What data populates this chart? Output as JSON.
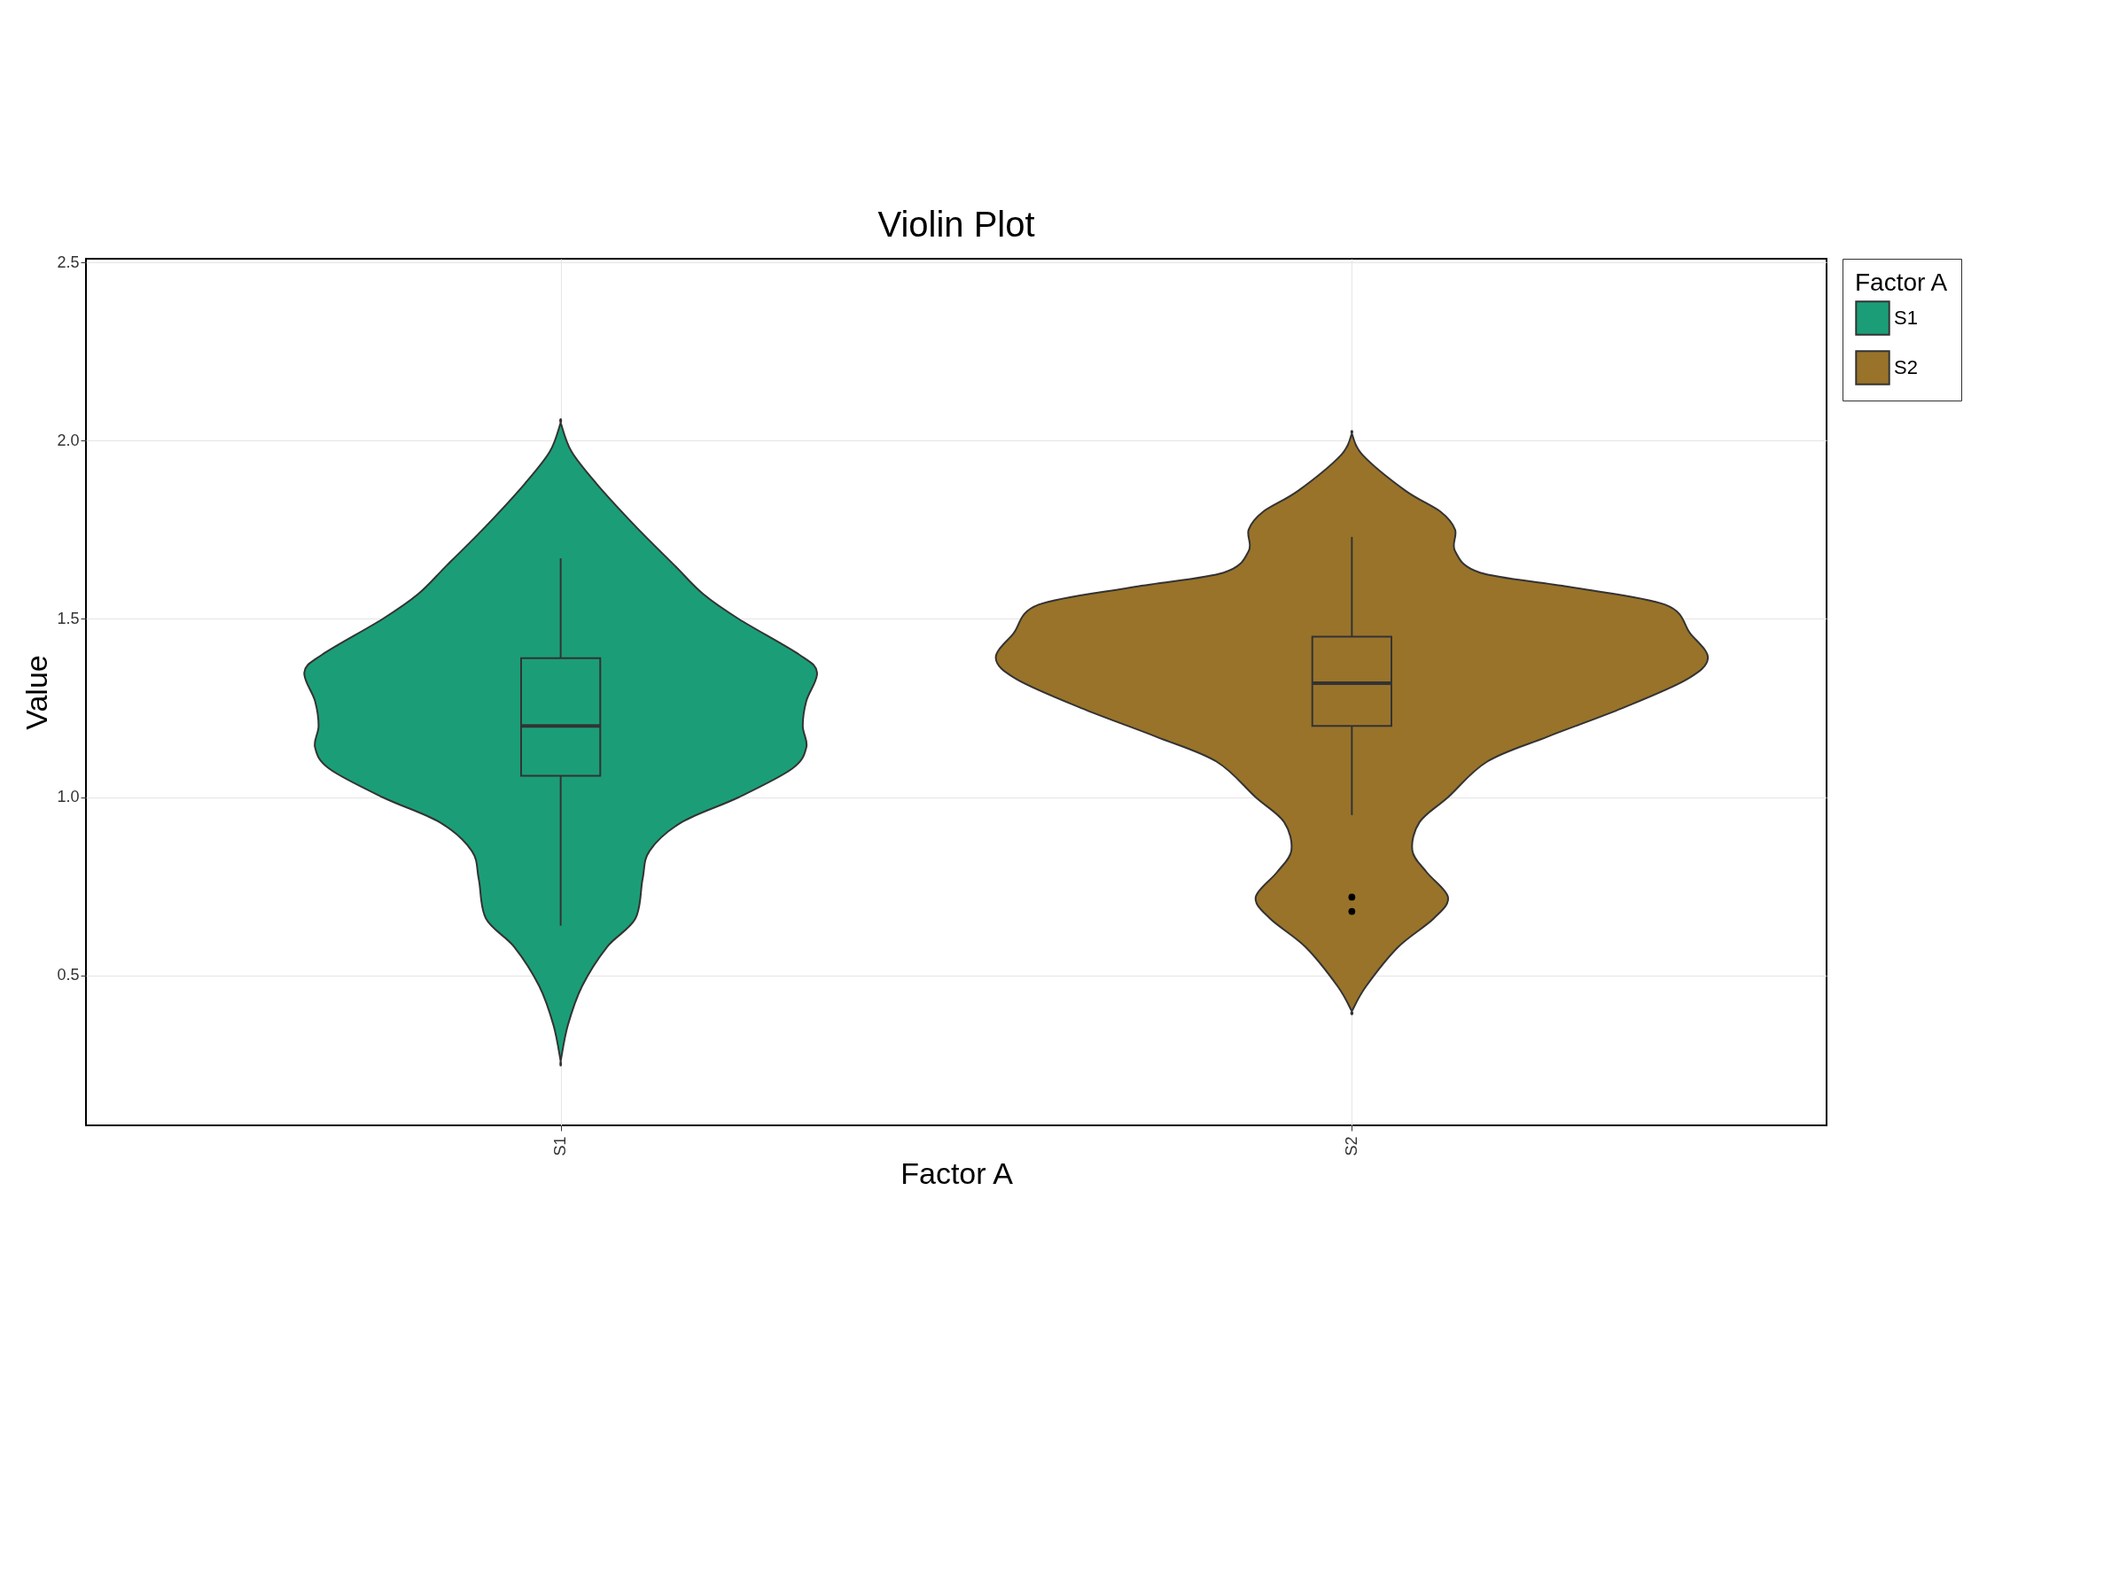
{
  "chart_data": {
    "type": "box",
    "title": "Violin Plot",
    "xlabel": "Factor A",
    "ylabel": "Value",
    "legend_title": "Factor A",
    "categories": [
      "S1",
      "S2"
    ],
    "ylim": [
      0.08,
      2.51
    ],
    "yticks": [
      {
        "value": 0.5,
        "label": "0.5"
      },
      {
        "value": 1,
        "label": "1.0"
      },
      {
        "value": 1.5,
        "label": "1.5"
      },
      {
        "value": 2,
        "label": "2.0"
      },
      {
        "value": 2.5,
        "label": "2.5"
      }
    ],
    "grid": true,
    "legend": "right",
    "series": [
      {
        "name": "S1",
        "color": "#1b9e77",
        "boxes": [
          {
            "low": 0.64,
            "q1": 1.06,
            "median": 1.2,
            "q3": 1.39,
            "high": 1.67
          },
          null
        ]
      },
      {
        "name": "S2",
        "color": "#99732a",
        "boxes": [
          null,
          {
            "low": 0.95,
            "q1": 1.2,
            "median": 1.32,
            "q3": 1.45,
            "high": 1.73,
            "outliers": [
              0.72,
              0.68
            ]
          }
        ]
      }
    ]
  }
}
